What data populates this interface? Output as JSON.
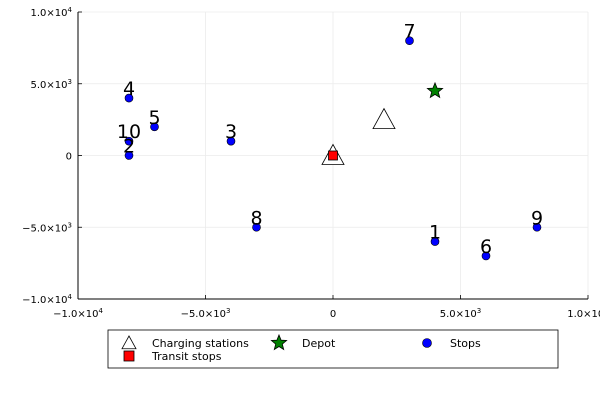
{
  "chart_data": {
    "type": "scatter",
    "xlim": [
      -10000,
      10000
    ],
    "ylim": [
      -10000,
      10000
    ],
    "grid": true,
    "legend_placement": "bottom",
    "x_ticks": [
      {
        "value": -10000,
        "mantissa": "−1.0×10",
        "exp": "4"
      },
      {
        "value": -5000,
        "mantissa": "−5.0×10",
        "exp": "3"
      },
      {
        "value": 0,
        "mantissa": "0",
        "exp": ""
      },
      {
        "value": 5000,
        "mantissa": "5.0×10",
        "exp": "3"
      },
      {
        "value": 10000,
        "mantissa": "1.0×10",
        "exp": "4"
      }
    ],
    "y_ticks": [
      {
        "value": 10000,
        "mantissa": "1.0×10",
        "exp": "4"
      },
      {
        "value": 5000,
        "mantissa": "5.0×10",
        "exp": "3"
      },
      {
        "value": 0,
        "mantissa": "0",
        "exp": ""
      },
      {
        "value": -5000,
        "mantissa": "−5.0×10",
        "exp": "3"
      },
      {
        "value": -10000,
        "mantissa": "−1.0×10",
        "exp": "4"
      }
    ],
    "series": [
      {
        "name": "Charging stations",
        "marker": "triangle",
        "color": "#ffffff",
        "points": [
          {
            "x": 0,
            "y": 0
          },
          {
            "x": 2000,
            "y": 2500
          }
        ]
      },
      {
        "name": "Transit stops",
        "marker": "square",
        "color": "#ff0000",
        "points": [
          {
            "x": 0,
            "y": 0
          }
        ]
      },
      {
        "name": "Depot",
        "marker": "star",
        "color": "#008000",
        "points": [
          {
            "x": 4000,
            "y": 4500
          }
        ]
      },
      {
        "name": "Stops",
        "marker": "circle",
        "color": "#0000ff",
        "points": [
          {
            "label": "1",
            "x": 4000,
            "y": -6000
          },
          {
            "label": "2",
            "x": -8000,
            "y": 0
          },
          {
            "label": "3",
            "x": -4000,
            "y": 1000
          },
          {
            "label": "4",
            "x": -8000,
            "y": 4000
          },
          {
            "label": "5",
            "x": -7000,
            "y": 2000
          },
          {
            "label": "6",
            "x": 6000,
            "y": -7000
          },
          {
            "label": "7",
            "x": 3000,
            "y": 8000
          },
          {
            "label": "8",
            "x": -3000,
            "y": -5000
          },
          {
            "label": "9",
            "x": 8000,
            "y": -5000
          },
          {
            "label": "10",
            "x": -8000,
            "y": 1000
          }
        ]
      }
    ]
  }
}
